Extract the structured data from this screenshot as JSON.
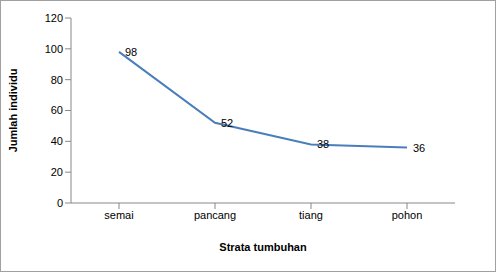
{
  "chart_data": {
    "type": "line",
    "x_label": "Strata tumbuhan",
    "y_label": "Jumlah individu",
    "categories": [
      "semai",
      "pancang",
      "tiang",
      "pohon"
    ],
    "values": [
      98,
      52,
      38,
      36
    ],
    "color": "#4a7ebb",
    "ylim": [
      0,
      120
    ],
    "yticks": [
      0,
      20,
      40,
      60,
      80,
      100,
      120
    ],
    "grid": false,
    "data_labels": true,
    "marker": "none"
  }
}
